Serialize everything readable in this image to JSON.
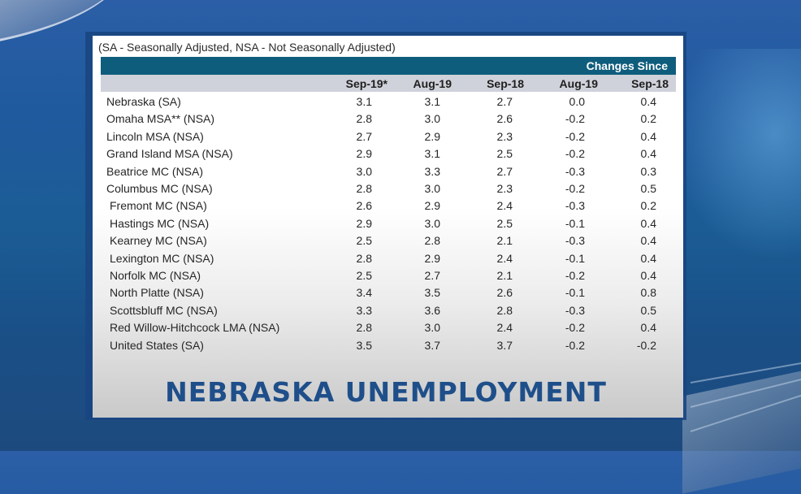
{
  "note": "(SA - Seasonally Adjusted, NSA - Not Seasonally Adjusted)",
  "header": {
    "group_label": "Changes Since",
    "columns": [
      "Sep-19*",
      "Aug-19",
      "Sep-18",
      "Aug-19",
      "Sep-18"
    ]
  },
  "rows": [
    {
      "area": "Nebraska (SA)",
      "sep19": "3.1",
      "aug19": "3.1",
      "sep18": "2.7",
      "chg_aug19": "0.0",
      "chg_sep18": "0.4"
    },
    {
      "area": "Omaha MSA** (NSA)",
      "sep19": "2.8",
      "aug19": "3.0",
      "sep18": "2.6",
      "chg_aug19": "-0.2",
      "chg_sep18": "0.2"
    },
    {
      "area": "Lincoln MSA (NSA)",
      "sep19": "2.7",
      "aug19": "2.9",
      "sep18": "2.3",
      "chg_aug19": "-0.2",
      "chg_sep18": "0.4"
    },
    {
      "area": "Grand Island MSA (NSA)",
      "sep19": "2.9",
      "aug19": "3.1",
      "sep18": "2.5",
      "chg_aug19": "-0.2",
      "chg_sep18": "0.4"
    },
    {
      "area": "Beatrice MC (NSA)",
      "sep19": "3.0",
      "aug19": "3.3",
      "sep18": "2.7",
      "chg_aug19": "-0.3",
      "chg_sep18": "0.3"
    },
    {
      "area": "Columbus MC (NSA)",
      "sep19": "2.8",
      "aug19": "3.0",
      "sep18": "2.3",
      "chg_aug19": "-0.2",
      "chg_sep18": "0.5"
    },
    {
      "area": "Fremont MC (NSA)",
      "sep19": "2.6",
      "aug19": "2.9",
      "sep18": "2.4",
      "chg_aug19": "-0.3",
      "chg_sep18": "0.2"
    },
    {
      "area": "Hastings MC (NSA)",
      "sep19": "2.9",
      "aug19": "3.0",
      "sep18": "2.5",
      "chg_aug19": "-0.1",
      "chg_sep18": "0.4"
    },
    {
      "area": "Kearney MC (NSA)",
      "sep19": "2.5",
      "aug19": "2.8",
      "sep18": "2.1",
      "chg_aug19": "-0.3",
      "chg_sep18": "0.4"
    },
    {
      "area": "Lexington MC (NSA)",
      "sep19": "2.8",
      "aug19": "2.9",
      "sep18": "2.4",
      "chg_aug19": "-0.1",
      "chg_sep18": "0.4"
    },
    {
      "area": "Norfolk MC (NSA)",
      "sep19": "2.5",
      "aug19": "2.7",
      "sep18": "2.1",
      "chg_aug19": "-0.2",
      "chg_sep18": "0.4"
    },
    {
      "area": "North Platte (NSA)",
      "sep19": "3.4",
      "aug19": "3.5",
      "sep18": "2.6",
      "chg_aug19": "-0.1",
      "chg_sep18": "0.8"
    },
    {
      "area": "Scottsbluff MC (NSA)",
      "sep19": "3.3",
      "aug19": "3.6",
      "sep18": "2.8",
      "chg_aug19": "-0.3",
      "chg_sep18": "0.5"
    },
    {
      "area": "Red Willow-Hitchcock LMA (NSA)",
      "sep19": "2.8",
      "aug19": "3.0",
      "sep18": "2.4",
      "chg_aug19": "-0.2",
      "chg_sep18": "0.4"
    },
    {
      "area": "United States (SA)",
      "sep19": "3.5",
      "aug19": "3.7",
      "sep18": "3.7",
      "chg_aug19": "-0.2",
      "chg_sep18": "-0.2"
    }
  ],
  "title": "NEBRASKA UNEMPLOYMENT",
  "colors": {
    "band": "#0f5d7d",
    "header_band": "#cfd2da",
    "title": "#1f4f8a",
    "background": "#1f5a9e"
  }
}
